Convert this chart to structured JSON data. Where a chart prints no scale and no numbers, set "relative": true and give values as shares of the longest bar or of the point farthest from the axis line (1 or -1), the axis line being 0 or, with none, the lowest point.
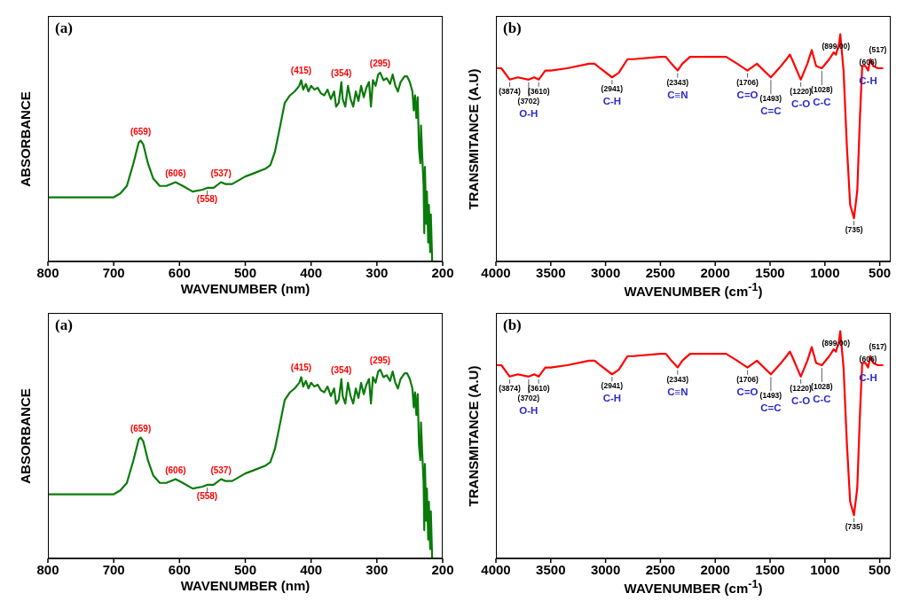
{
  "chart_data": [
    {
      "type": "line",
      "title": "(a)",
      "xlabel": "WAVENUMBER (nm)",
      "ylabel": "ABSORBANCE",
      "relative": true,
      "xlim": [
        800,
        200
      ],
      "xticks": [
        800,
        700,
        600,
        500,
        400,
        300,
        200
      ],
      "series": [
        {
          "color": "#0a7a0a",
          "x": [
            800,
            720,
            700,
            690,
            680,
            670,
            662,
            659,
            655,
            648,
            640,
            630,
            620,
            606,
            595,
            580,
            565,
            558,
            548,
            537,
            530,
            520,
            510,
            500,
            485,
            470,
            462,
            455,
            448,
            440,
            432,
            425,
            418,
            415,
            412,
            408,
            404,
            400,
            395,
            390,
            385,
            380,
            375,
            370,
            365,
            362,
            358,
            354,
            352,
            348,
            344,
            340,
            336,
            332,
            328,
            324,
            320,
            316,
            312,
            309,
            306,
            302,
            298,
            295,
            290,
            285,
            280,
            276,
            272,
            268,
            264,
            258,
            254,
            250,
            246,
            244,
            242,
            240,
            238,
            236,
            234,
            233,
            231,
            229,
            228,
            227,
            225,
            224,
            222,
            221,
            219,
            218,
            216
          ],
          "values": [
            0.34,
            0.34,
            0.34,
            0.36,
            0.4,
            0.52,
            0.63,
            0.64,
            0.62,
            0.52,
            0.44,
            0.4,
            0.4,
            0.42,
            0.4,
            0.37,
            0.38,
            0.39,
            0.39,
            0.42,
            0.41,
            0.41,
            0.43,
            0.45,
            0.47,
            0.49,
            0.51,
            0.58,
            0.7,
            0.84,
            0.88,
            0.9,
            0.93,
            0.96,
            0.91,
            0.94,
            0.9,
            0.93,
            0.91,
            0.92,
            0.89,
            0.88,
            0.91,
            0.86,
            0.9,
            0.82,
            0.84,
            0.95,
            0.86,
            0.82,
            0.93,
            0.86,
            0.82,
            0.9,
            0.85,
            0.93,
            0.87,
            0.92,
            0.95,
            0.82,
            0.96,
            0.93,
            0.99,
            1.0,
            0.96,
            0.97,
            0.94,
            0.99,
            0.93,
            0.9,
            0.95,
            0.98,
            0.98,
            0.95,
            0.9,
            0.8,
            0.88,
            0.76,
            0.87,
            0.6,
            0.52,
            0.72,
            0.55,
            0.4,
            0.15,
            0.5,
            0.2,
            0.37,
            0.1,
            0.3,
            0.05,
            0.25,
            0
          ]
        }
      ],
      "annotations": [
        {
          "text": "(659)",
          "x": 659,
          "y": 0.64
        },
        {
          "text": "(606)",
          "x": 606,
          "y": 0.42
        },
        {
          "text": "(558)",
          "x": 558,
          "y": 0.39
        },
        {
          "text": "(537)",
          "x": 537,
          "y": 0.42
        },
        {
          "text": "(415)",
          "x": 415,
          "y": 0.96
        },
        {
          "text": "(354)",
          "x": 354,
          "y": 0.95
        },
        {
          "text": "(295)",
          "x": 295,
          "y": 1.0
        }
      ]
    },
    {
      "type": "line",
      "title": "(b)",
      "xlabel": "WAVENUMBER (cm$^{-1}$)",
      "ylabel": "TRANSMITANCE (A.U)",
      "relative": true,
      "xlim": [
        4000,
        400
      ],
      "xticks": [
        4000,
        3500,
        3000,
        2500,
        2000,
        1500,
        1000,
        500
      ],
      "series": [
        {
          "color": "#ff0000",
          "x": [
            4000,
            3950,
            3874,
            3800,
            3702,
            3650,
            3610,
            3550,
            3500,
            3350,
            3150,
            3100,
            3050,
            2941,
            2880,
            2800,
            2750,
            2500,
            2450,
            2400,
            2343,
            2300,
            2230,
            2150,
            1900,
            1800,
            1706,
            1620,
            1493,
            1400,
            1350,
            1320,
            1300,
            1220,
            1160,
            1120,
            1080,
            1028,
            960,
            920,
            899,
            870,
            860,
            830,
            800,
            770,
            735,
            705,
            680,
            660,
            630,
            606,
            585,
            560,
            517,
            475
          ],
          "values": [
            0.85,
            0.85,
            0.8,
            0.81,
            0.8,
            0.81,
            0.8,
            0.84,
            0.84,
            0.85,
            0.87,
            0.87,
            0.85,
            0.81,
            0.83,
            0.89,
            0.89,
            0.9,
            0.9,
            0.87,
            0.84,
            0.87,
            0.9,
            0.9,
            0.9,
            0.87,
            0.84,
            0.87,
            0.81,
            0.86,
            0.89,
            0.91,
            0.89,
            0.8,
            0.87,
            0.93,
            0.86,
            0.85,
            0.89,
            0.92,
            0.91,
            0.96,
            1.0,
            0.84,
            0.51,
            0.25,
            0.19,
            0.31,
            0.64,
            0.86,
            0.86,
            0.84,
            0.89,
            0.86,
            0.85,
            0.85
          ]
        }
      ],
      "annotations": [
        {
          "text": "(3874)",
          "x": 3874,
          "y": 0.8
        },
        {
          "text": "(3702)",
          "x": 3702,
          "y": 0.8
        },
        {
          "text": "(3610)",
          "x": 3610,
          "y": 0.8
        },
        {
          "text": "(2941)",
          "x": 2941,
          "y": 0.81
        },
        {
          "text": "(2343)",
          "x": 2343,
          "y": 0.84
        },
        {
          "text": "(1706)",
          "x": 1706,
          "y": 0.84
        },
        {
          "text": "(1493)",
          "x": 1493,
          "y": 0.81
        },
        {
          "text": "(1220)",
          "x": 1220,
          "y": 0.8
        },
        {
          "text": "(1028)",
          "x": 1028,
          "y": 0.85
        },
        {
          "text": "(899,00)",
          "x": 899,
          "y": 0.91
        },
        {
          "text": "(735)",
          "x": 735,
          "y": 0.19
        },
        {
          "text": "(606)",
          "x": 606,
          "y": 0.84
        },
        {
          "text": "(517)",
          "x": 517,
          "y": 0.85
        },
        {
          "text": "O-H",
          "x": 3702,
          "y": 0.8
        },
        {
          "text": "C-H",
          "x": 2941,
          "y": 0.81
        },
        {
          "text": "C≡N",
          "x": 2343,
          "y": 0.84
        },
        {
          "text": "C=O",
          "x": 1706,
          "y": 0.84
        },
        {
          "text": "C=C",
          "x": 1493,
          "y": 0.81
        },
        {
          "text": "C-O",
          "x": 1220,
          "y": 0.8
        },
        {
          "text": "C-C",
          "x": 1028,
          "y": 0.85
        },
        {
          "text": "C-H",
          "x": 606,
          "y": 0.84
        }
      ]
    },
    {
      "type": "line",
      "title": "(a)",
      "xlabel": "WAVENUMBER (nm)",
      "ylabel": "ABSORBANCE",
      "relative": true,
      "xlim": [
        800,
        200
      ],
      "xticks": [
        800,
        700,
        600,
        500,
        400,
        300,
        200
      ],
      "series": [
        {
          "color": "#0a7a0a",
          "x": [
            800,
            720,
            700,
            690,
            680,
            670,
            662,
            659,
            655,
            648,
            640,
            630,
            620,
            606,
            595,
            580,
            565,
            558,
            548,
            537,
            530,
            520,
            510,
            500,
            485,
            470,
            462,
            455,
            448,
            440,
            432,
            425,
            418,
            415,
            412,
            408,
            404,
            400,
            395,
            390,
            385,
            380,
            375,
            370,
            365,
            362,
            358,
            354,
            352,
            348,
            344,
            340,
            336,
            332,
            328,
            324,
            320,
            316,
            312,
            309,
            306,
            302,
            298,
            295,
            290,
            285,
            280,
            276,
            272,
            268,
            264,
            258,
            254,
            250,
            246,
            244,
            242,
            240,
            238,
            236,
            234,
            233,
            231,
            229,
            228,
            227,
            225,
            224,
            222,
            221,
            219,
            218,
            216
          ],
          "values": [
            0.34,
            0.34,
            0.34,
            0.36,
            0.4,
            0.52,
            0.63,
            0.64,
            0.62,
            0.52,
            0.44,
            0.4,
            0.4,
            0.42,
            0.4,
            0.37,
            0.38,
            0.39,
            0.39,
            0.42,
            0.41,
            0.41,
            0.43,
            0.45,
            0.47,
            0.49,
            0.51,
            0.58,
            0.7,
            0.84,
            0.88,
            0.9,
            0.93,
            0.96,
            0.91,
            0.94,
            0.9,
            0.93,
            0.91,
            0.92,
            0.89,
            0.88,
            0.91,
            0.86,
            0.9,
            0.82,
            0.84,
            0.95,
            0.86,
            0.82,
            0.93,
            0.86,
            0.82,
            0.9,
            0.85,
            0.93,
            0.87,
            0.92,
            0.95,
            0.82,
            0.96,
            0.93,
            0.99,
            1.0,
            0.96,
            0.97,
            0.94,
            0.99,
            0.93,
            0.9,
            0.95,
            0.98,
            0.98,
            0.95,
            0.9,
            0.8,
            0.88,
            0.76,
            0.87,
            0.6,
            0.52,
            0.72,
            0.55,
            0.4,
            0.15,
            0.5,
            0.2,
            0.37,
            0.1,
            0.3,
            0.05,
            0.25,
            0
          ]
        }
      ],
      "annotations": [
        {
          "text": "(659)",
          "x": 659,
          "y": 0.64
        },
        {
          "text": "(606)",
          "x": 606,
          "y": 0.42
        },
        {
          "text": "(558)",
          "x": 558,
          "y": 0.39
        },
        {
          "text": "(537)",
          "x": 537,
          "y": 0.42
        },
        {
          "text": "(415)",
          "x": 415,
          "y": 0.96
        },
        {
          "text": "(354)",
          "x": 354,
          "y": 0.95
        },
        {
          "text": "(295)",
          "x": 295,
          "y": 1.0
        }
      ]
    },
    {
      "type": "line",
      "title": "(b)",
      "xlabel": "WAVENUMBER (cm$^{-1}$)",
      "ylabel": "TRANSMITANCE (A.U)",
      "relative": true,
      "xlim": [
        4000,
        400
      ],
      "xticks": [
        4000,
        3500,
        3000,
        2500,
        2000,
        1500,
        1000,
        500
      ],
      "series": [
        {
          "color": "#ff0000",
          "x": [
            4000,
            3950,
            3874,
            3800,
            3702,
            3650,
            3610,
            3550,
            3500,
            3350,
            3150,
            3100,
            3050,
            2941,
            2880,
            2800,
            2750,
            2500,
            2450,
            2400,
            2343,
            2300,
            2230,
            2150,
            1900,
            1800,
            1706,
            1620,
            1493,
            1400,
            1350,
            1320,
            1300,
            1220,
            1160,
            1120,
            1080,
            1028,
            960,
            920,
            899,
            870,
            860,
            830,
            800,
            770,
            735,
            705,
            680,
            660,
            630,
            606,
            585,
            560,
            517,
            475
          ],
          "values": [
            0.85,
            0.85,
            0.8,
            0.81,
            0.8,
            0.81,
            0.8,
            0.84,
            0.84,
            0.85,
            0.87,
            0.87,
            0.85,
            0.81,
            0.83,
            0.89,
            0.89,
            0.9,
            0.9,
            0.87,
            0.84,
            0.87,
            0.9,
            0.9,
            0.9,
            0.87,
            0.84,
            0.87,
            0.81,
            0.86,
            0.89,
            0.91,
            0.89,
            0.8,
            0.87,
            0.93,
            0.86,
            0.85,
            0.89,
            0.92,
            0.91,
            0.96,
            1.0,
            0.84,
            0.51,
            0.25,
            0.19,
            0.31,
            0.64,
            0.86,
            0.86,
            0.84,
            0.89,
            0.86,
            0.85,
            0.85
          ]
        }
      ],
      "annotations": [
        {
          "text": "(3874)",
          "x": 3874,
          "y": 0.8
        },
        {
          "text": "(3702)",
          "x": 3702,
          "y": 0.8
        },
        {
          "text": "(3610)",
          "x": 3610,
          "y": 0.8
        },
        {
          "text": "(2941)",
          "x": 2941,
          "y": 0.81
        },
        {
          "text": "(2343)",
          "x": 2343,
          "y": 0.84
        },
        {
          "text": "(1706)",
          "x": 1706,
          "y": 0.84
        },
        {
          "text": "(1493)",
          "x": 1493,
          "y": 0.81
        },
        {
          "text": "(1220)",
          "x": 1220,
          "y": 0.8
        },
        {
          "text": "(1028)",
          "x": 1028,
          "y": 0.85
        },
        {
          "text": "(899,00)",
          "x": 899,
          "y": 0.91
        },
        {
          "text": "(735)",
          "x": 735,
          "y": 0.19
        },
        {
          "text": "(606)",
          "x": 606,
          "y": 0.84
        },
        {
          "text": "(517)",
          "x": 517,
          "y": 0.85
        },
        {
          "text": "O-H",
          "x": 3702,
          "y": 0.8
        },
        {
          "text": "C-H",
          "x": 2941,
          "y": 0.81
        },
        {
          "text": "C≡N",
          "x": 2343,
          "y": 0.84
        },
        {
          "text": "C=O",
          "x": 1706,
          "y": 0.84
        },
        {
          "text": "C=C",
          "x": 1493,
          "y": 0.81
        },
        {
          "text": "C-O",
          "x": 1220,
          "y": 0.8
        },
        {
          "text": "C-C",
          "x": 1028,
          "y": 0.85
        },
        {
          "text": "C-H",
          "x": 606,
          "y": 0.84
        }
      ]
    }
  ]
}
